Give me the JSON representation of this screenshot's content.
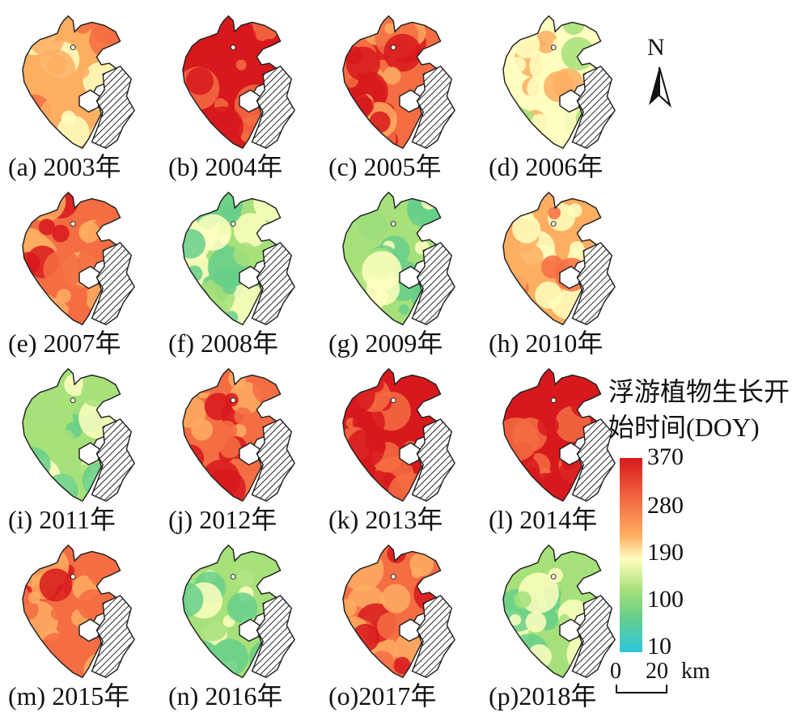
{
  "panels": [
    {
      "label": "(a) 2003年"
    },
    {
      "label": "(b) 2004年"
    },
    {
      "label": "(c) 2005年"
    },
    {
      "label": "(d) 2006年"
    },
    {
      "label": "(e) 2007年"
    },
    {
      "label": "(f) 2008年"
    },
    {
      "label": "(g) 2009年"
    },
    {
      "label": "(h) 2010年"
    },
    {
      "label": "(i) 2011年"
    },
    {
      "label": "(j) 2012年"
    },
    {
      "label": "(k) 2013年"
    },
    {
      "label": "(l) 2014年"
    },
    {
      "label": "(m) 2015年"
    },
    {
      "label": "(n) 2016年"
    },
    {
      "label": "(o)2017年"
    },
    {
      "label": "(p)2018年"
    }
  ],
  "north_arrow": {
    "label": "N"
  },
  "legend": {
    "title_line1": "浮游植物生长开",
    "title_line2": "始时间(DOY)",
    "ticks": [
      "370",
      "280",
      "190",
      "100",
      "10"
    ],
    "colors": [
      "#d7191c",
      "#f46d43",
      "#fdae61",
      "#ffffbf",
      "#a6e07a",
      "#66cf8a",
      "#2ec7e0"
    ]
  },
  "scale_bar": {
    "zero": "0",
    "value": "20",
    "unit": "km"
  }
}
